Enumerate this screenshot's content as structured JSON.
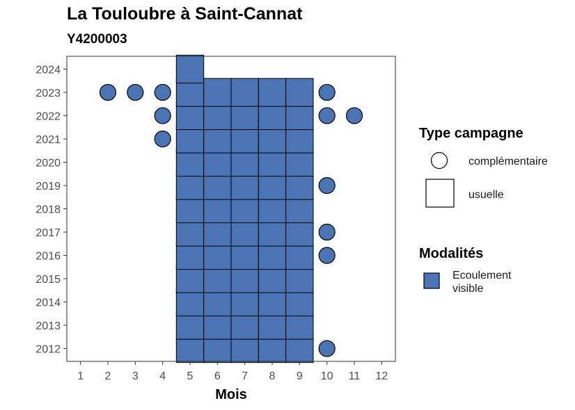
{
  "chart_data": {
    "type": "heatmap",
    "title": "La Touloubre à Saint-Cannat",
    "subtitle": "Y4200003",
    "xlabel": "Mois",
    "ylabel": "",
    "x_ticks": [
      "1",
      "2",
      "3",
      "4",
      "5",
      "6",
      "7",
      "8",
      "9",
      "10",
      "11",
      "12"
    ],
    "y_ticks": [
      "2012",
      "2013",
      "2014",
      "2015",
      "2016",
      "2017",
      "2018",
      "2019",
      "2020",
      "2021",
      "2022",
      "2023",
      "2024"
    ],
    "xlim": [
      0.5,
      12.5
    ],
    "ylim": [
      2011.45,
      2024.55
    ],
    "fill_color": "#4a74b4",
    "grid": false,
    "legend": {
      "placement": "right",
      "type_title": "Type campagne",
      "type_items": [
        {
          "label": "complémentaire",
          "shape": "circle"
        },
        {
          "label": "usuelle",
          "shape": "square"
        }
      ],
      "modality_title": "Modalités",
      "modality_items": [
        {
          "label": "Ecoulement visible",
          "color": "#4a74b4"
        }
      ]
    },
    "usuelle": [
      {
        "month": 5,
        "years": [
          2012,
          2013,
          2014,
          2015,
          2016,
          2017,
          2018,
          2019,
          2020,
          2021,
          2022,
          2023,
          2024
        ]
      },
      {
        "month": 6,
        "years": [
          2012,
          2013,
          2014,
          2015,
          2016,
          2017,
          2018,
          2019,
          2020,
          2021,
          2022,
          2023
        ]
      },
      {
        "month": 7,
        "years": [
          2012,
          2013,
          2014,
          2015,
          2016,
          2017,
          2018,
          2019,
          2020,
          2021,
          2022,
          2023
        ]
      },
      {
        "month": 8,
        "years": [
          2012,
          2013,
          2014,
          2015,
          2016,
          2017,
          2018,
          2019,
          2020,
          2021,
          2022,
          2023
        ]
      },
      {
        "month": 9,
        "years": [
          2012,
          2013,
          2014,
          2015,
          2016,
          2017,
          2018,
          2019,
          2020,
          2021,
          2022,
          2023
        ]
      }
    ],
    "complementaire": [
      {
        "month": 2,
        "year": 2023
      },
      {
        "month": 3,
        "year": 2023
      },
      {
        "month": 4,
        "year": 2023
      },
      {
        "month": 4,
        "year": 2022
      },
      {
        "month": 4,
        "year": 2021
      },
      {
        "month": 10,
        "year": 2023
      },
      {
        "month": 10,
        "year": 2022
      },
      {
        "month": 11,
        "year": 2022
      },
      {
        "month": 10,
        "year": 2019
      },
      {
        "month": 10,
        "year": 2017
      },
      {
        "month": 10,
        "year": 2016
      },
      {
        "month": 10,
        "year": 2012
      }
    ]
  }
}
